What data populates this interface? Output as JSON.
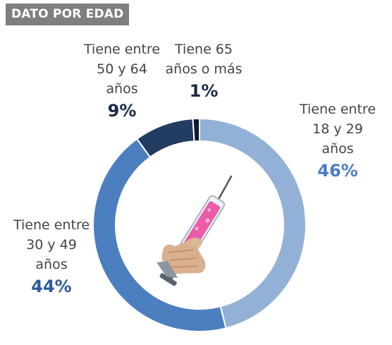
{
  "header": {
    "title": "DATO POR EDAD"
  },
  "colors": {
    "header_bg": "#7f7f7f",
    "slice_18_29": "#93b1d6",
    "slice_30_49": "#4c7fbf",
    "slice_50_64": "#223c62",
    "slice_65_plus": "#0d1b30",
    "pct_light_blue": "#4a7cc4",
    "pct_mid_blue": "#2d5aa0",
    "pct_dark": "#1c2c48"
  },
  "icons": {
    "center": "syringe-hand-icon"
  },
  "chart_data": {
    "type": "pie",
    "categories": [
      "Tiene entre 18 y 29 años",
      "Tiene entre 30 y 49 años",
      "Tiene entre 50 y 64 años",
      "Tiene 65 años o más"
    ],
    "values": [
      46,
      44,
      9,
      1
    ],
    "value_labels": [
      "46%",
      "44%",
      "9%",
      "1%"
    ],
    "title": "DATO POR EDAD",
    "labels": {
      "s18_29": {
        "l1": "Tiene entre",
        "l2": "18 y 29",
        "l3": "años",
        "pct": "46%"
      },
      "s30_49": {
        "l1": "Tiene entre",
        "l2": "30 y 49",
        "l3": "años",
        "pct": "44%"
      },
      "s50_64": {
        "l1": "Tiene entre",
        "l2": "50 y 64",
        "l3": "años",
        "pct": "9%"
      },
      "s65": {
        "l1": "Tiene 65",
        "l2": "años o más",
        "pct": "1%"
      }
    }
  }
}
